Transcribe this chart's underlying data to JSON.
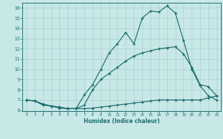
{
  "xlabel": "Humidex (Indice chaleur)",
  "bg_color": "#c8e8e8",
  "grid_color": "#aacece",
  "line_color": "#1e6e6e",
  "xlim": [
    -0.5,
    23.5
  ],
  "ylim": [
    5.9,
    16.5
  ],
  "yticks": [
    6,
    7,
    8,
    9,
    10,
    11,
    12,
    13,
    14,
    15,
    16
  ],
  "xticks": [
    0,
    1,
    2,
    3,
    4,
    5,
    6,
    7,
    8,
    9,
    10,
    11,
    12,
    13,
    14,
    15,
    16,
    17,
    18,
    19,
    20,
    21,
    22,
    23
  ],
  "line1_x": [
    0,
    1,
    2,
    3,
    4,
    5,
    6,
    7,
    8,
    9,
    10,
    11,
    12,
    13,
    14,
    15,
    16,
    17,
    18,
    19,
    20,
    21,
    22,
    23
  ],
  "line1_y": [
    7.0,
    6.9,
    6.6,
    6.4,
    6.3,
    6.15,
    6.15,
    7.5,
    8.5,
    10.0,
    11.6,
    12.5,
    13.6,
    12.5,
    15.0,
    15.7,
    15.6,
    16.2,
    15.5,
    12.8,
    10.0,
    8.4,
    7.4,
    7.0
  ],
  "line2_x": [
    0,
    1,
    2,
    3,
    4,
    5,
    6,
    7,
    8,
    9,
    10,
    11,
    12,
    13,
    14,
    15,
    16,
    17,
    18,
    19,
    20,
    21,
    22,
    23
  ],
  "line2_y": [
    7.0,
    6.9,
    6.6,
    6.4,
    6.3,
    6.15,
    6.15,
    6.5,
    8.0,
    9.0,
    9.6,
    10.2,
    10.8,
    11.3,
    11.6,
    11.8,
    12.0,
    12.1,
    12.2,
    11.5,
    10.2,
    8.5,
    8.3,
    7.4
  ],
  "line3_x": [
    0,
    1,
    2,
    3,
    4,
    5,
    6,
    7,
    8,
    9,
    10,
    11,
    12,
    13,
    14,
    15,
    16,
    17,
    18,
    19,
    20,
    21,
    22,
    23
  ],
  "line3_y": [
    7.0,
    6.9,
    6.5,
    6.4,
    6.2,
    6.15,
    6.15,
    6.15,
    6.2,
    6.3,
    6.4,
    6.5,
    6.6,
    6.7,
    6.8,
    6.9,
    7.0,
    7.0,
    7.0,
    7.0,
    7.0,
    7.0,
    7.2,
    7.4
  ]
}
